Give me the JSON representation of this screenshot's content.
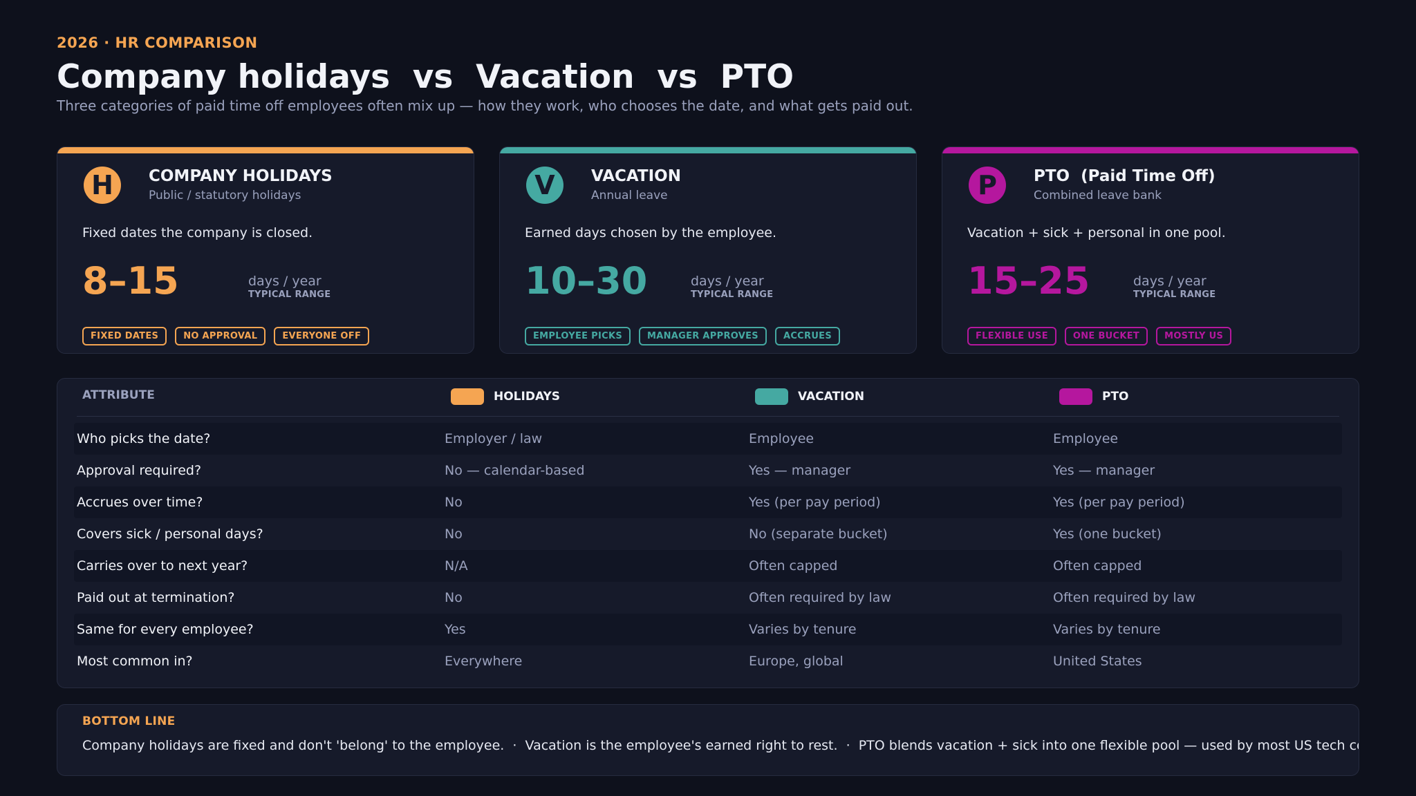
{
  "header": {
    "eyebrow": "2026  ·  HR COMPARISON",
    "title": "Company holidays  vs  Vacation  vs  PTO",
    "subtitle": "Three categories of paid time off employees often mix up — how they work, who chooses the date, and what gets paid out."
  },
  "cards": [
    {
      "letter": "H",
      "title": "COMPANY HOLIDAYS",
      "subtitle": "Public / statutory holidays",
      "description": "Fixed dates the company is closed.",
      "range": "8–15",
      "unit": "days / year",
      "unit_sub": "TYPICAL RANGE",
      "tags": [
        "FIXED DATES",
        "NO APPROVAL",
        "EVERYONE OFF"
      ],
      "color": "#f5a552"
    },
    {
      "letter": "V",
      "title": "VACATION",
      "subtitle": "Annual leave",
      "description": "Earned days chosen by the employee.",
      "range": "10–30",
      "unit": "days / year",
      "unit_sub": "TYPICAL RANGE",
      "tags": [
        "EMPLOYEE PICKS",
        "MANAGER APPROVES",
        "ACCRUES"
      ],
      "color": "#45a9a2"
    },
    {
      "letter": "P",
      "title": "PTO  (Paid Time Off)",
      "subtitle": "Combined leave bank",
      "description": "Vacation + sick + personal in one pool.",
      "range": "15–25",
      "unit": "days / year",
      "unit_sub": "TYPICAL RANGE",
      "tags": [
        "FLEXIBLE USE",
        "ONE BUCKET",
        "MOSTLY US"
      ],
      "color": "#b5179e"
    }
  ],
  "table": {
    "headers": [
      "ATTRIBUTE",
      "HOLIDAYS",
      "VACATION",
      "PTO"
    ],
    "rows": [
      [
        "Who picks the date?",
        "Employer / law",
        "Employee",
        "Employee"
      ],
      [
        "Approval required?",
        "No — calendar-based",
        "Yes — manager",
        "Yes — manager"
      ],
      [
        "Accrues over time?",
        "No",
        "Yes (per pay period)",
        "Yes (per pay period)"
      ],
      [
        "Covers sick / personal days?",
        "No",
        "No (separate bucket)",
        "Yes (one bucket)"
      ],
      [
        "Carries over to next year?",
        "N/A",
        "Often capped",
        "Often capped"
      ],
      [
        "Paid out at termination?",
        "No",
        "Often required by law",
        "Often required by law"
      ],
      [
        "Same for every employee?",
        "Yes",
        "Varies by tenure",
        "Varies by tenure"
      ],
      [
        "Most common in?",
        "Everywhere",
        "Europe, global",
        "United States"
      ]
    ]
  },
  "bottom_line": {
    "label": "BOTTOM LINE",
    "text": "Company holidays are fixed and don't 'belong' to the employee.  ·  Vacation is the employee's earned right to rest.  ·  PTO blends vacation + sick into one flexible pool — used by most US tech comp"
  }
}
